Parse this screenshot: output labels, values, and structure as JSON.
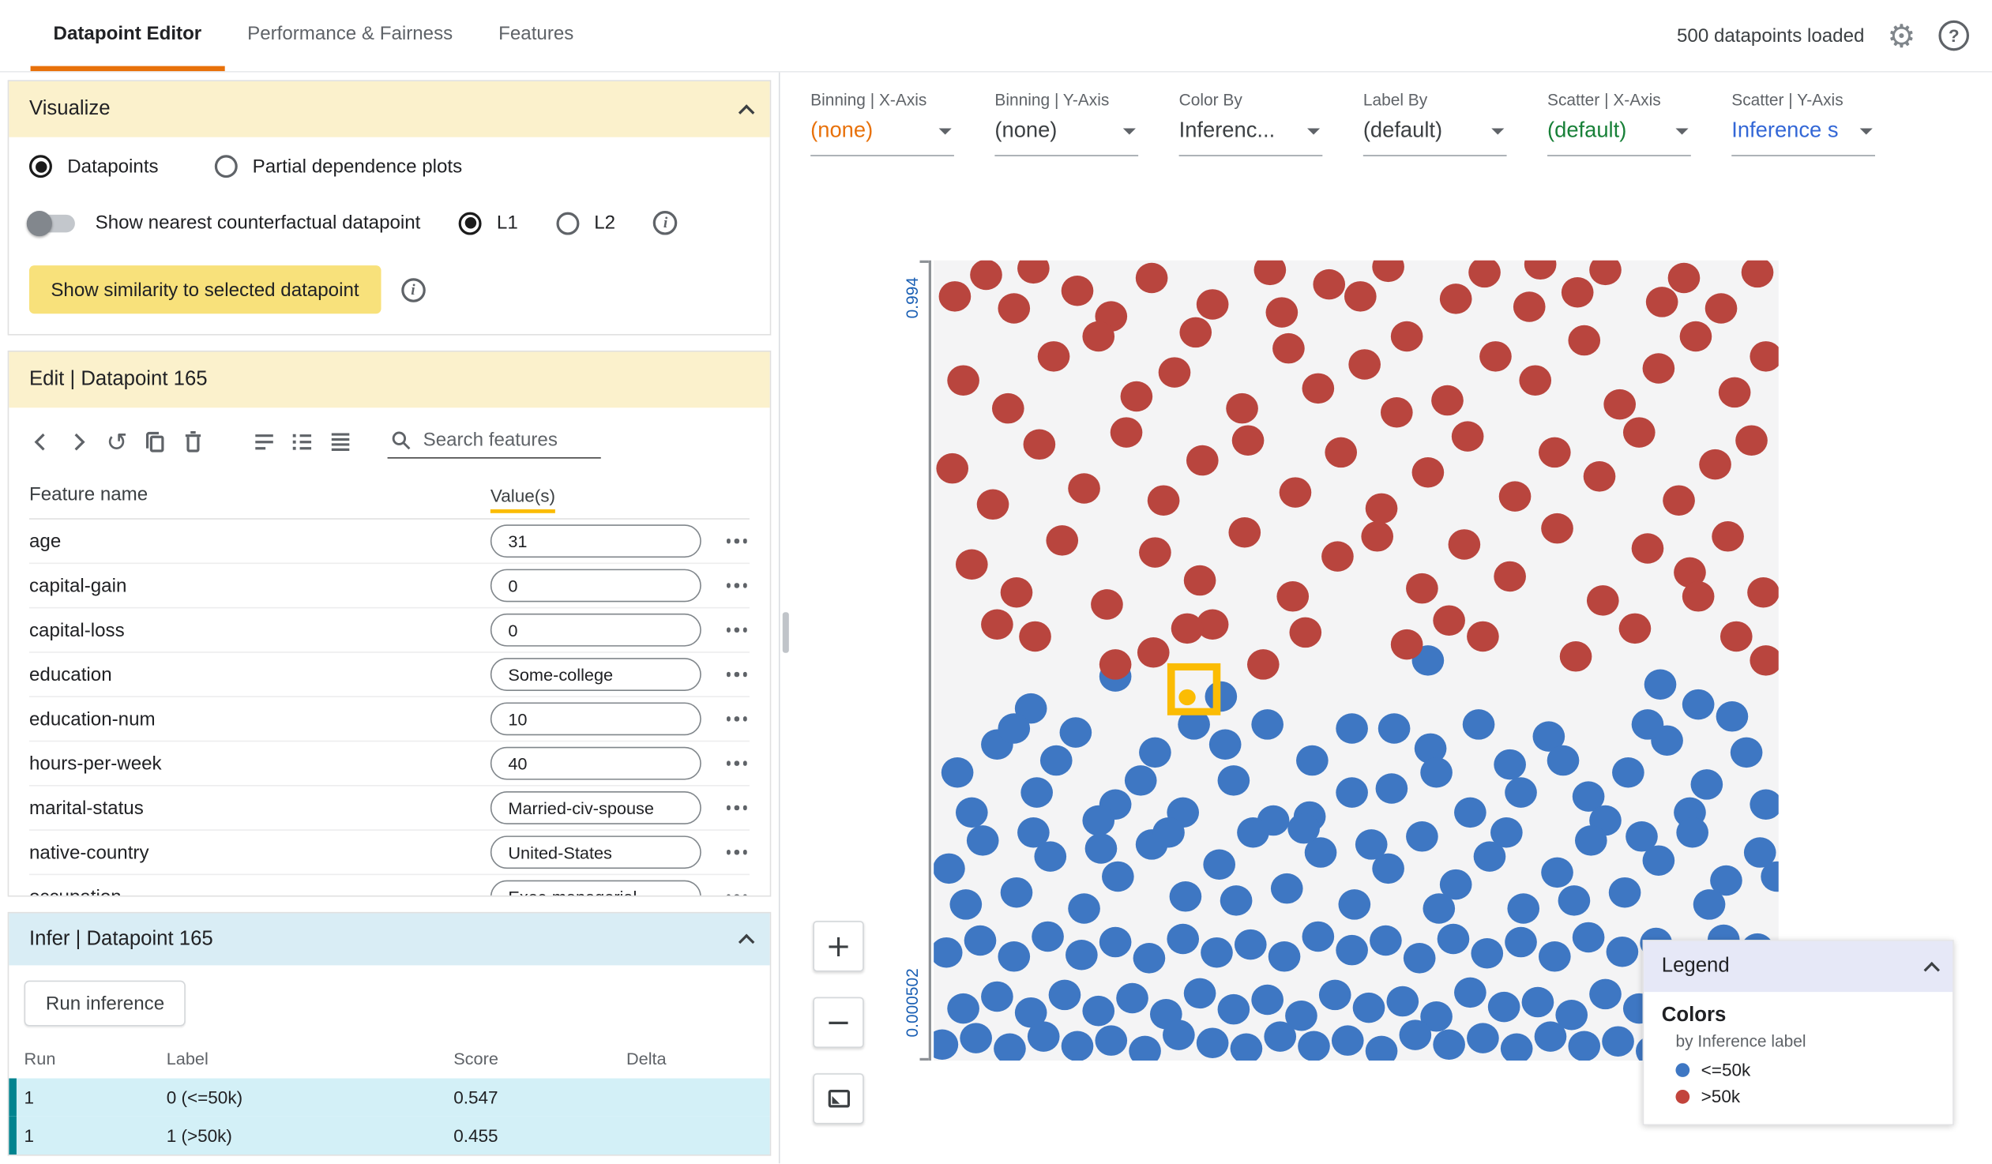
{
  "header": {
    "tabs": [
      {
        "label": "Datapoint Editor",
        "state": "active"
      },
      {
        "label": "Performance & Fairness",
        "state": ""
      },
      {
        "label": "Features",
        "state": ""
      }
    ],
    "status": "500 datapoints loaded"
  },
  "visualize": {
    "title": "Visualize",
    "datapoints_label": "Datapoints",
    "pdp_label": "Partial dependence plots",
    "counterfactual_label": "Show nearest counterfactual datapoint",
    "l1_label": "L1",
    "l2_label": "L2",
    "similarity_button": "Show similarity to selected datapoint"
  },
  "edit": {
    "title": "Edit | Datapoint 165",
    "search_placeholder": "Search features",
    "columns": [
      "Feature name",
      "Value(s)"
    ],
    "features": [
      {
        "name": "age",
        "value": "31"
      },
      {
        "name": "capital-gain",
        "value": "0"
      },
      {
        "name": "capital-loss",
        "value": "0"
      },
      {
        "name": "education",
        "value": "Some-college"
      },
      {
        "name": "education-num",
        "value": "10"
      },
      {
        "name": "hours-per-week",
        "value": "40"
      },
      {
        "name": "marital-status",
        "value": "Married-civ-spouse"
      },
      {
        "name": "native-country",
        "value": "United-States"
      },
      {
        "name": "occupation",
        "value": "Exec-managerial"
      }
    ]
  },
  "infer": {
    "title": "Infer | Datapoint 165",
    "run_button": "Run inference",
    "columns": [
      "Run",
      "Label",
      "Score",
      "Delta"
    ],
    "rows": [
      {
        "run": "1",
        "label": "0 (<=50k)",
        "score": "0.547",
        "delta": ""
      },
      {
        "run": "1",
        "label": "1 (>50k)",
        "score": "0.455",
        "delta": ""
      }
    ]
  },
  "controls": [
    {
      "label": "Binning | X-Axis",
      "value": "(none)",
      "color": "#e8710a"
    },
    {
      "label": "Binning | Y-Axis",
      "value": "(none)",
      "color": "#3c4043"
    },
    {
      "label": "Color By",
      "value": "Inferenc...",
      "color": "#3c4043"
    },
    {
      "label": "Label By",
      "value": "(default)",
      "color": "#3c4043"
    },
    {
      "label": "Scatter | X-Axis",
      "value": "(default)",
      "color": "#188038"
    },
    {
      "label": "Scatter | Y-Axis",
      "value": "Inference s",
      "color": "#3367d6"
    }
  ],
  "legend": {
    "title": "Legend",
    "colors_title": "Colors",
    "subtitle": "by Inference label",
    "entries": [
      {
        "label": "<=50k",
        "color": "#3e77c3"
      },
      {
        "label": ">50k",
        "color": "#c2443c"
      }
    ]
  },
  "zoom": {
    "plus_label": "+",
    "minus_label": "−"
  },
  "chart_data": {
    "type": "scatter",
    "y_axis": {
      "top": "0.994",
      "bottom": "0.000502"
    },
    "colors": {
      "positive": "#b9453e",
      "negative": "#3e77c3",
      "selected": "#fbbc04"
    },
    "selected_point": [
      308,
      536
    ],
    "points_positive": [
      25,
      45,
      62,
      18,
      95,
      60,
      118,
      10,
      170,
      38,
      210,
      70,
      258,
      22,
      330,
      55,
      398,
      12,
      412,
      65,
      468,
      30,
      538,
      8,
      618,
      48,
      652,
      15,
      705,
      58,
      718,
      5,
      762,
      40,
      795,
      12,
      862,
      52,
      888,
      22,
      932,
      60,
      975,
      15,
      35,
      150,
      88,
      185,
      142,
      120,
      195,
      95,
      240,
      170,
      285,
      140,
      310,
      90,
      365,
      185,
      420,
      110,
      455,
      160,
      510,
      130,
      560,
      95,
      608,
      175,
      665,
      120,
      712,
      150,
      770,
      100,
      812,
      180,
      858,
      135,
      902,
      95,
      948,
      165,
      985,
      120,
      22,
      260,
      70,
      305,
      125,
      230,
      178,
      285,
      228,
      215,
      272,
      300,
      318,
      250,
      372,
      225,
      428,
      290,
      482,
      240,
      530,
      310,
      585,
      265,
      632,
      220,
      688,
      295,
      735,
      240,
      788,
      270,
      835,
      215,
      882,
      300,
      925,
      255,
      968,
      225,
      45,
      380,
      98,
      415,
      152,
      350,
      205,
      430,
      262,
      365,
      315,
      400,
      368,
      340,
      425,
      420,
      478,
      370,
      525,
      345,
      578,
      410,
      628,
      355,
      682,
      395,
      738,
      335,
      792,
      425,
      845,
      360,
      895,
      390,
      940,
      345,
      982,
      415,
      120,
      470,
      260,
      490,
      330,
      455,
      390,
      505,
      440,
      465,
      560,
      480,
      610,
      450,
      760,
      495,
      830,
      460,
      950,
      470,
      985,
      500,
      300,
      460,
      215,
      505,
      505,
      45,
      548,
      190,
      905,
      420,
      75,
      455,
      650,
      470
    ],
    "points_negative": [
      215,
      520,
      585,
      500,
      860,
      530,
      905,
      555,
      340,
      545,
      115,
      560,
      28,
      640,
      75,
      605,
      122,
      665,
      168,
      590,
      215,
      680,
      262,
      615,
      308,
      580,
      355,
      650,
      402,
      700,
      448,
      625,
      495,
      585,
      542,
      660,
      588,
      610,
      635,
      690,
      682,
      630,
      728,
      595,
      775,
      670,
      822,
      640,
      868,
      600,
      915,
      655,
      962,
      615,
      45,
      690,
      95,
      585,
      145,
      625,
      195,
      700,
      245,
      650,
      295,
      690,
      345,
      605,
      395,
      580,
      445,
      695,
      495,
      665,
      545,
      585,
      595,
      640,
      645,
      580,
      695,
      665,
      745,
      625,
      795,
      700,
      845,
      580,
      895,
      690,
      945,
      570,
      985,
      680,
      18,
      760,
      58,
      725,
      98,
      790,
      138,
      745,
      178,
      810,
      218,
      770,
      258,
      730,
      298,
      795,
      338,
      755,
      378,
      715,
      418,
      785,
      458,
      740,
      498,
      805,
      538,
      760,
      578,
      720,
      618,
      780,
      658,
      745,
      698,
      810,
      738,
      765,
      778,
      725,
      818,
      790,
      858,
      750,
      898,
      715,
      938,
      775,
      978,
      740,
      38,
      805,
      118,
      715,
      198,
      735,
      278,
      715,
      358,
      800,
      438,
      710,
      518,
      730,
      598,
      810,
      678,
      715,
      758,
      800,
      838,
      720,
      918,
      805,
      998,
      770,
      15,
      865,
      55,
      850,
      95,
      870,
      135,
      845,
      175,
      868,
      215,
      852,
      255,
      872,
      295,
      848,
      335,
      865,
      375,
      855,
      415,
      870,
      455,
      845,
      495,
      862,
      535,
      850,
      575,
      872,
      615,
      848,
      655,
      866,
      695,
      852,
      735,
      870,
      775,
      846,
      815,
      864,
      855,
      853,
      895,
      871,
      935,
      849,
      975,
      860,
      35,
      935,
      75,
      920,
      115,
      940,
      155,
      918,
      195,
      938,
      235,
      922,
      275,
      942,
      315,
      916,
      355,
      936,
      395,
      924,
      435,
      944,
      475,
      918,
      515,
      934,
      555,
      926,
      595,
      945,
      635,
      915,
      675,
      933,
      715,
      927,
      755,
      943,
      795,
      917,
      835,
      935,
      875,
      925,
      915,
      944,
      955,
      916,
      995,
      932,
      10,
      980,
      50,
      972,
      90,
      985,
      130,
      970,
      170,
      982,
      210,
      975,
      250,
      988,
      290,
      968,
      330,
      978,
      370,
      985,
      410,
      970,
      450,
      982,
      490,
      975,
      530,
      988,
      570,
      968,
      610,
      980,
      650,
      972,
      690,
      985,
      730,
      970,
      770,
      982,
      810,
      976,
      850,
      988,
      890,
      968,
      930,
      979,
      970,
      985
    ]
  }
}
